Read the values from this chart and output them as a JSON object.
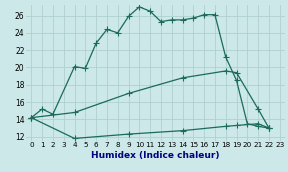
{
  "xlabel": "Humidex (Indice chaleur)",
  "xlim": [
    -0.5,
    23.5
  ],
  "ylim": [
    11.5,
    27.2
  ],
  "yticks": [
    12,
    14,
    16,
    18,
    20,
    22,
    24,
    26
  ],
  "xticks": [
    0,
    1,
    2,
    3,
    4,
    5,
    6,
    7,
    8,
    9,
    10,
    11,
    12,
    13,
    14,
    15,
    16,
    17,
    18,
    19,
    20,
    21,
    22,
    23
  ],
  "bg_color": "#cce8e8",
  "grid_color": "#b0d0d0",
  "line_color": "#1a6b5a",
  "line1_x": [
    0,
    1,
    2,
    4,
    5,
    6,
    7,
    8,
    9,
    10,
    11,
    12,
    13,
    14,
    15,
    16,
    17,
    18,
    19,
    20,
    21,
    22
  ],
  "line1_y": [
    14.2,
    15.2,
    14.6,
    20.1,
    19.9,
    22.8,
    24.4,
    24.0,
    25.9,
    27.0,
    26.5,
    25.3,
    25.5,
    25.5,
    25.7,
    26.1,
    26.1,
    21.2,
    18.5,
    13.5,
    13.2,
    13.0
  ],
  "line2_x": [
    0,
    4,
    9,
    14,
    18,
    19,
    21,
    22
  ],
  "line2_y": [
    14.2,
    14.8,
    17.0,
    18.8,
    19.6,
    19.4,
    15.2,
    13.0
  ],
  "line3_x": [
    0,
    4,
    9,
    14,
    18,
    19,
    21,
    22
  ],
  "line3_y": [
    14.2,
    11.8,
    12.3,
    12.7,
    13.2,
    13.3,
    13.5,
    13.0
  ]
}
